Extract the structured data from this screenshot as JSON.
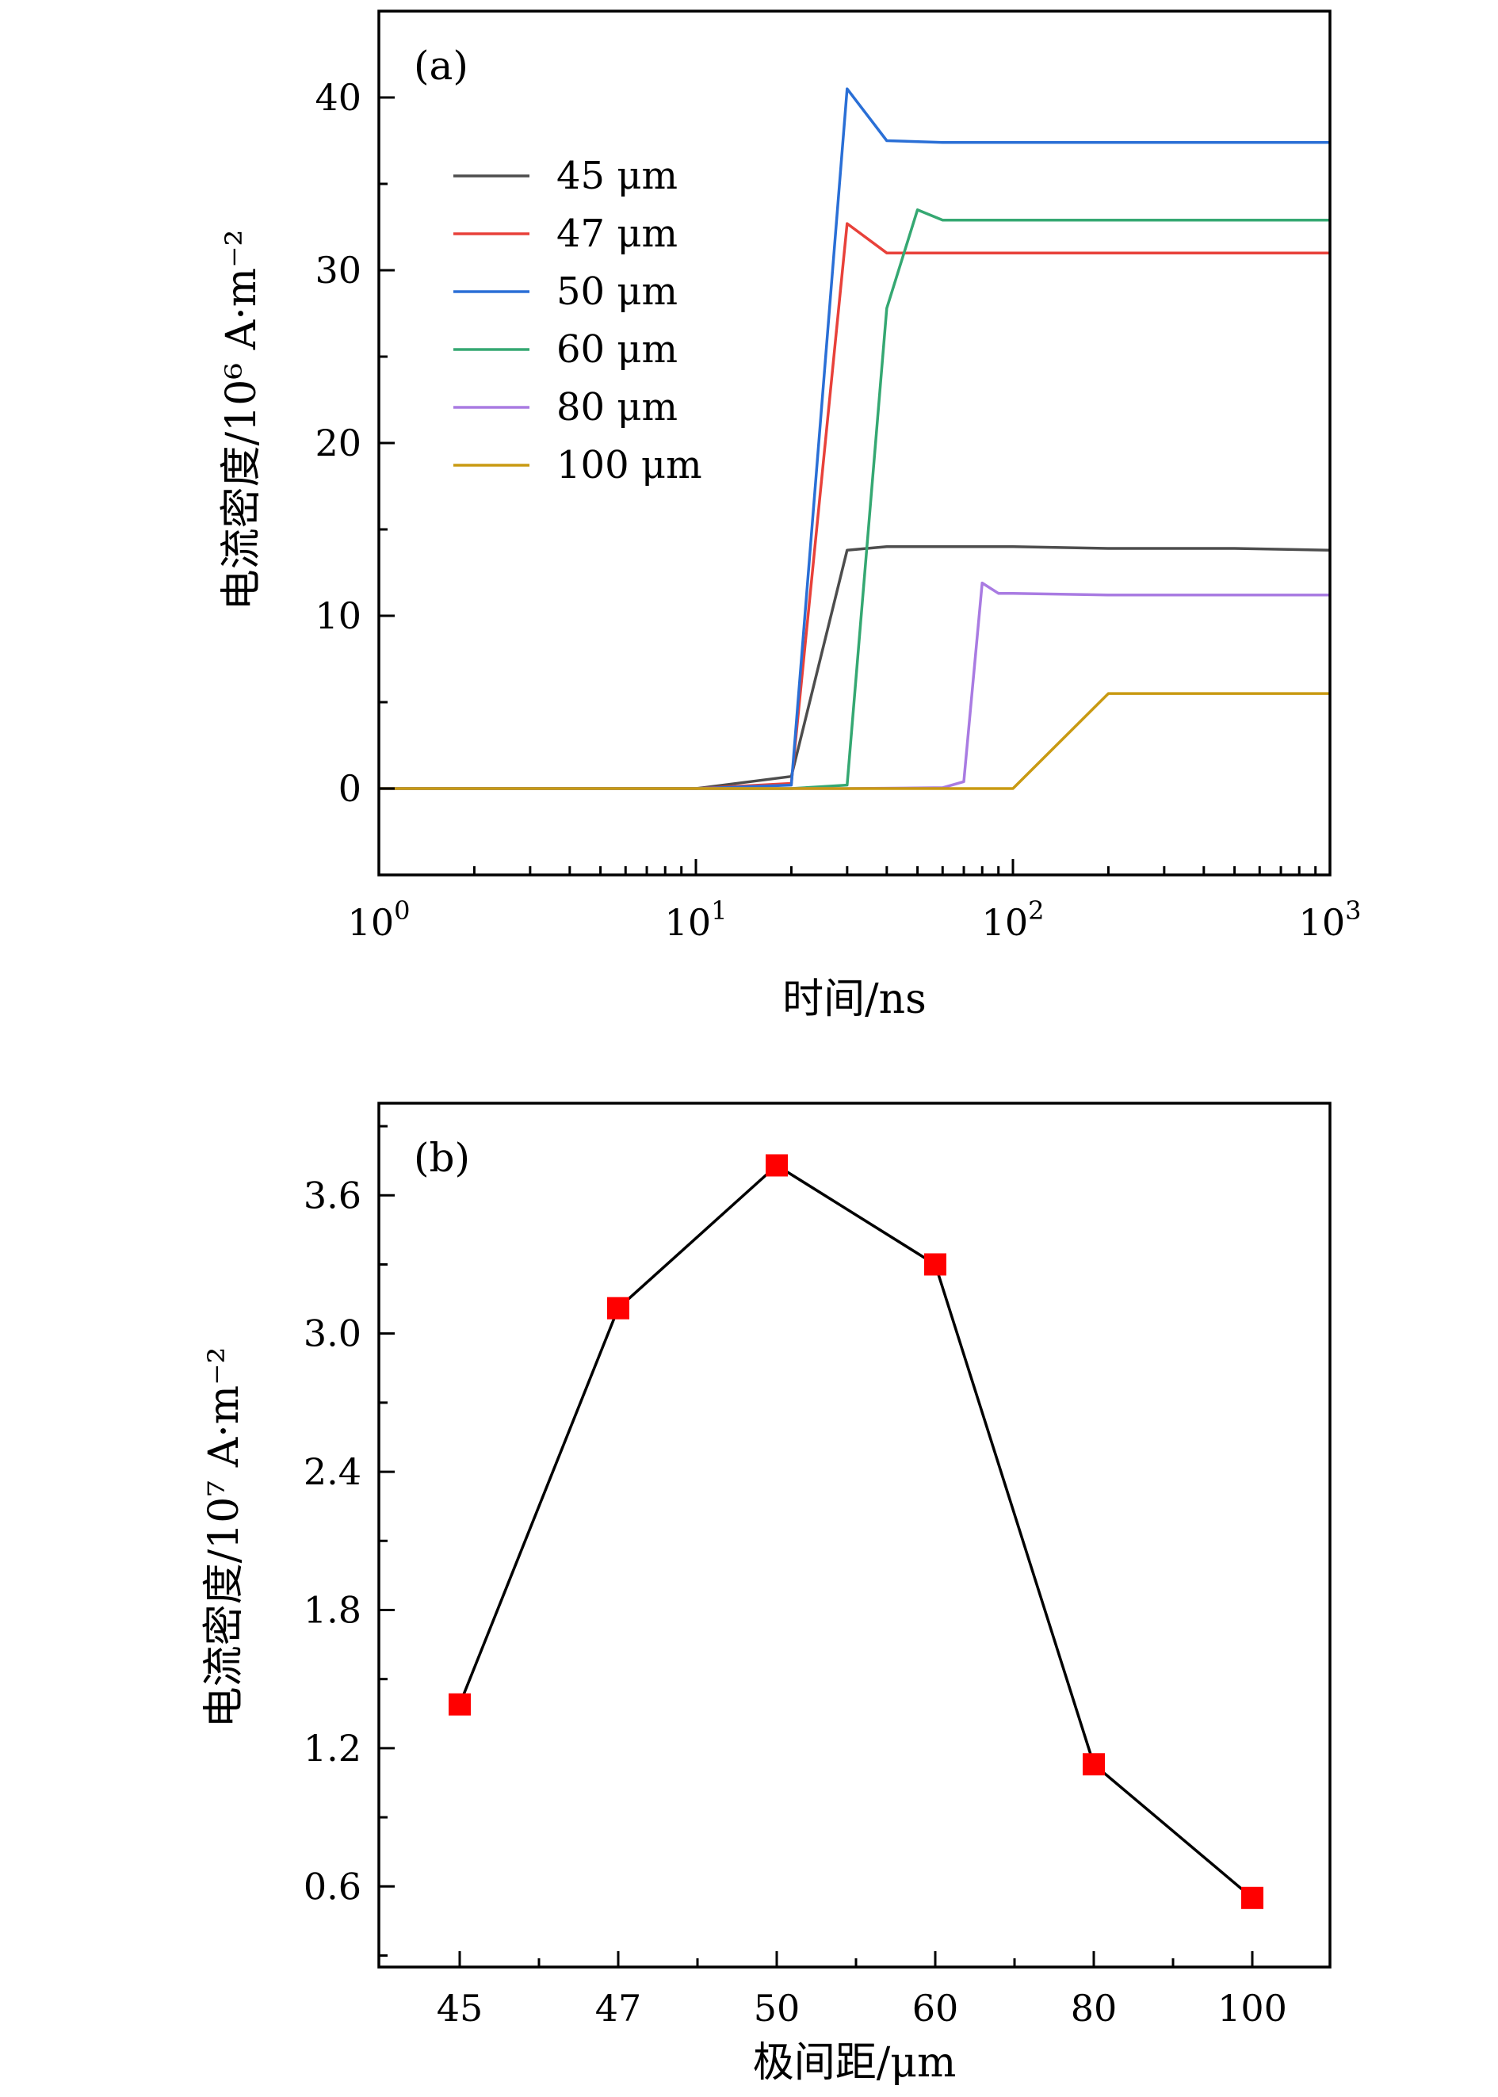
{
  "colors": {
    "background": "#ffffff",
    "axis": "#000000",
    "series_45": "#4d4d4d",
    "series_47": "#e8413a",
    "series_50": "#2a6fd6",
    "series_60": "#35a872",
    "series_80": "#a97be2",
    "series_100": "#c99a12",
    "marker_b": "#ff0000",
    "line_b": "#000000"
  },
  "chart_data": [
    {
      "panel": "(a)",
      "type": "line",
      "x_scale": "log",
      "xlabel": "时间/ns",
      "ylabel": "电流密度/10⁶ A·m⁻²",
      "xlim": [
        1,
        1000
      ],
      "ylim": [
        -5,
        45
      ],
      "x_ticks": [
        1,
        10,
        100,
        1000
      ],
      "x_tick_labels": [
        {
          "base": "10",
          "exp": "0"
        },
        {
          "base": "10",
          "exp": "1"
        },
        {
          "base": "10",
          "exp": "2"
        },
        {
          "base": "10",
          "exp": "3"
        }
      ],
      "y_ticks": [
        0,
        10,
        20,
        30,
        40
      ],
      "y_tick_labels": [
        "0",
        "10",
        "20",
        "30",
        "40"
      ],
      "legend_position": "upper-left",
      "series": [
        {
          "name": "45 μm",
          "color_key": "series_45",
          "x": [
            1,
            10,
            20,
            30,
            40,
            60,
            100,
            200,
            500,
            1000
          ],
          "y": [
            0,
            0,
            0.7,
            13.8,
            14.0,
            14.0,
            14.0,
            13.9,
            13.9,
            13.8
          ]
        },
        {
          "name": "47 μm",
          "color_key": "series_47",
          "x": [
            1,
            10,
            20,
            30,
            40,
            60,
            100,
            200,
            500,
            1000
          ],
          "y": [
            0,
            0,
            0.3,
            32.7,
            31.0,
            31.0,
            31.0,
            31.0,
            31.0,
            31.0
          ]
        },
        {
          "name": "50 μm",
          "color_key": "series_50",
          "x": [
            1,
            10,
            20,
            30,
            40,
            60,
            100,
            200,
            500,
            1000
          ],
          "y": [
            0,
            0,
            0.2,
            40.5,
            37.5,
            37.4,
            37.4,
            37.4,
            37.4,
            37.4
          ]
        },
        {
          "name": "60 μm",
          "color_key": "series_60",
          "x": [
            1,
            10,
            20,
            30,
            40,
            50,
            60,
            100,
            200,
            500,
            1000
          ],
          "y": [
            0,
            0,
            0,
            0.2,
            27.8,
            33.5,
            32.9,
            32.9,
            32.9,
            32.9,
            32.9
          ]
        },
        {
          "name": "80 μm",
          "color_key": "series_80",
          "x": [
            1,
            10,
            30,
            60,
            70,
            80,
            90,
            100,
            200,
            500,
            1000
          ],
          "y": [
            0,
            0,
            0,
            0.05,
            0.4,
            11.9,
            11.3,
            11.3,
            11.2,
            11.2,
            11.2
          ]
        },
        {
          "name": "100 μm",
          "color_key": "series_100",
          "x": [
            1,
            10,
            100,
            200,
            500,
            1000
          ],
          "y": [
            0,
            0,
            0,
            5.5,
            5.5,
            5.5
          ]
        }
      ]
    },
    {
      "panel": "(b)",
      "type": "line",
      "xlabel": "极间距/μm",
      "ylabel": "电流密度/10⁷ A·m⁻²",
      "categories": [
        "45",
        "47",
        "50",
        "60",
        "80",
        "100"
      ],
      "values": [
        1.39,
        3.11,
        3.73,
        3.3,
        1.13,
        0.55
      ],
      "ylim": [
        0.25,
        4.0
      ],
      "y_ticks": [
        0.6,
        1.2,
        1.8,
        2.4,
        3.0,
        3.6
      ],
      "y_tick_labels": [
        "0.6",
        "1.2",
        "1.8",
        "2.4",
        "3.0",
        "3.6"
      ],
      "marker": "square"
    }
  ]
}
